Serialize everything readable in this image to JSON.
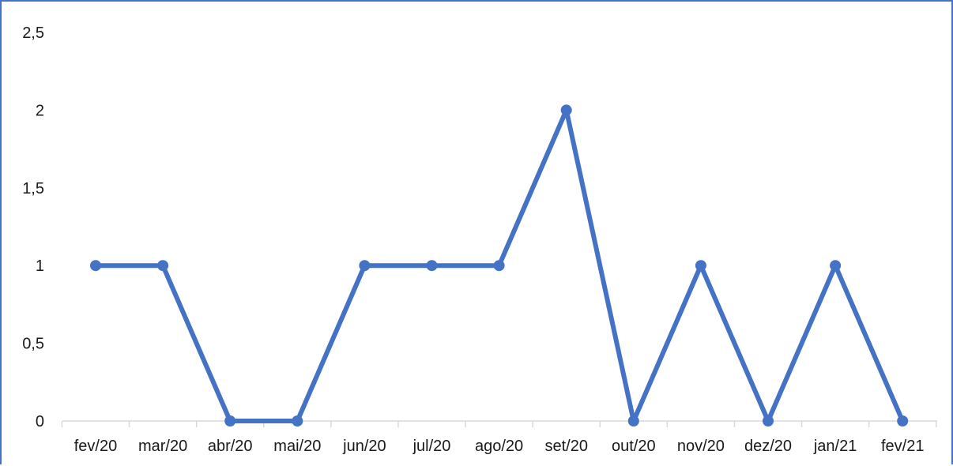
{
  "chart_data": {
    "type": "line",
    "title": "",
    "xlabel": "",
    "ylabel": "",
    "categories": [
      "fev/20",
      "mar/20",
      "abr/20",
      "mai/20",
      "jun/20",
      "jul/20",
      "ago/20",
      "set/20",
      "out/20",
      "nov/20",
      "dez/20",
      "jan/21",
      "fev/21"
    ],
    "series": [
      {
        "values": [
          1,
          1,
          0,
          0,
          1,
          1,
          1,
          2,
          0,
          1,
          0,
          1,
          0
        ],
        "color": "#4472c4"
      }
    ],
    "yticks": [
      "0",
      "0,5",
      "1",
      "1,5",
      "2",
      "2,5"
    ],
    "ylim": [
      0,
      2.5
    ],
    "grid": false,
    "legend": "none",
    "markers": "circle"
  }
}
